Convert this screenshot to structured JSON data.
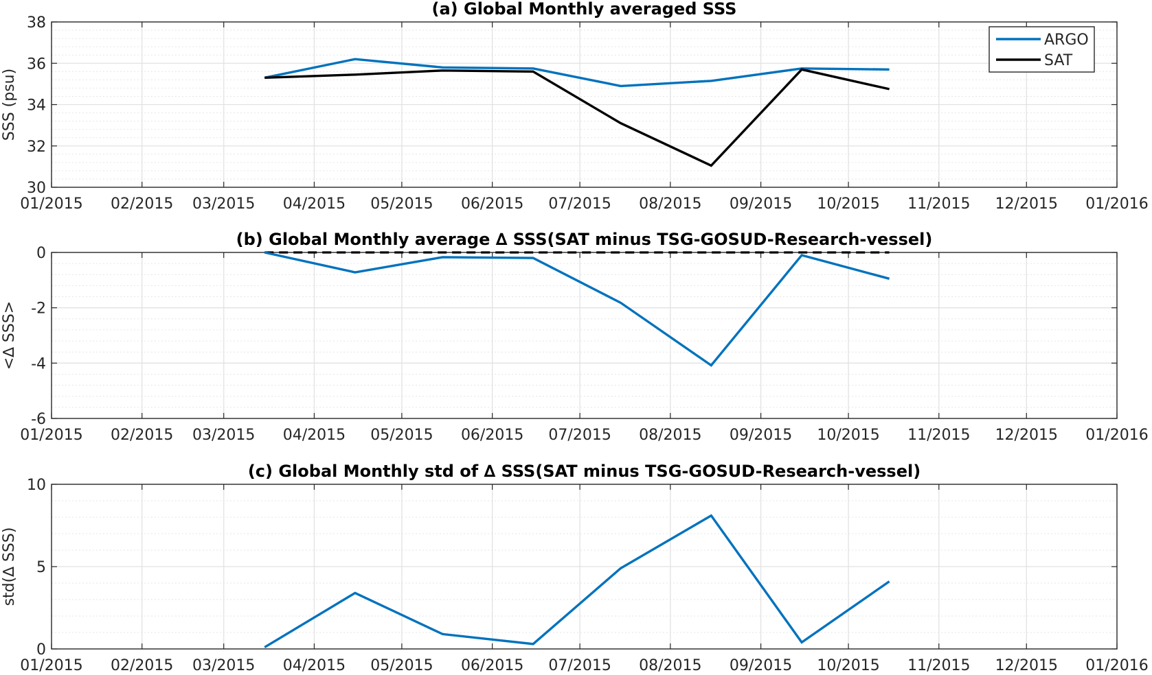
{
  "chart_data": [
    {
      "type": "line",
      "title": "(a) Global Monthly averaged SSS",
      "xlabel": "",
      "ylabel": "SSS (psu)",
      "xlim": [
        "2015-01-01",
        "2016-01-01"
      ],
      "ylim": [
        30,
        38
      ],
      "yticks": [
        30,
        32,
        34,
        36,
        38
      ],
      "xtick_labels": [
        "01/2015",
        "02/2015",
        "03/2015",
        "04/2015",
        "05/2015",
        "06/2015",
        "07/2015",
        "08/2015",
        "09/2015",
        "10/2015",
        "11/2015",
        "12/2015",
        "01/2016"
      ],
      "grid": true,
      "legend": "top-right",
      "x": [
        "2015-03-15",
        "2015-04-15",
        "2015-05-15",
        "2015-06-15",
        "2015-07-15",
        "2015-08-15",
        "2015-09-15",
        "2015-10-15"
      ],
      "series": [
        {
          "name": "ARGO",
          "color": "#0072BD",
          "values": [
            35.3,
            36.2,
            35.8,
            35.75,
            34.9,
            35.15,
            35.75,
            35.7
          ]
        },
        {
          "name": "SAT",
          "color": "#000000",
          "values": [
            35.3,
            35.45,
            35.65,
            35.6,
            33.1,
            31.05,
            35.7,
            34.75
          ]
        }
      ]
    },
    {
      "type": "line",
      "title": "(b) Global Monthly average ∆ SSS(SAT minus TSG-GOSUD-Research-vessel)",
      "xlabel": "",
      "ylabel": "<∆ SSS>",
      "xlim": [
        "2015-01-01",
        "2016-01-01"
      ],
      "ylim": [
        -6,
        0
      ],
      "yticks": [
        -6,
        -4,
        -2,
        0
      ],
      "xtick_labels": [
        "01/2015",
        "02/2015",
        "03/2015",
        "04/2015",
        "05/2015",
        "06/2015",
        "07/2015",
        "08/2015",
        "09/2015",
        "10/2015",
        "11/2015",
        "12/2015",
        "01/2016"
      ],
      "grid": true,
      "x": [
        "2015-03-15",
        "2015-04-15",
        "2015-05-15",
        "2015-06-15",
        "2015-07-15",
        "2015-08-15",
        "2015-09-15",
        "2015-10-15"
      ],
      "series": [
        {
          "color": "#0072BD",
          "values": [
            0.0,
            -0.72,
            -0.17,
            -0.2,
            -1.82,
            -4.08,
            -0.1,
            -0.95
          ]
        }
      ],
      "reference_line": {
        "y": 0,
        "x_range": [
          "2015-03-15",
          "2015-10-15"
        ],
        "style": "dashed",
        "color": "#000000"
      }
    },
    {
      "type": "line",
      "title": "(c) Global Monthly std of ∆ SSS(SAT minus TSG-GOSUD-Research-vessel)",
      "xlabel": "",
      "ylabel": "std(∆ SSS)",
      "xlim": [
        "2015-01-01",
        "2016-01-01"
      ],
      "ylim": [
        0,
        10
      ],
      "yticks": [
        0,
        5,
        10
      ],
      "xtick_labels": [
        "01/2015",
        "02/2015",
        "03/2015",
        "04/2015",
        "05/2015",
        "06/2015",
        "07/2015",
        "08/2015",
        "09/2015",
        "10/2015",
        "11/2015",
        "12/2015",
        "01/2016"
      ],
      "grid": true,
      "x": [
        "2015-03-15",
        "2015-04-15",
        "2015-05-15",
        "2015-06-15",
        "2015-07-15",
        "2015-08-15",
        "2015-09-15",
        "2015-10-15"
      ],
      "series": [
        {
          "color": "#0072BD",
          "values": [
            0.1,
            3.4,
            0.9,
            0.3,
            4.9,
            8.1,
            0.4,
            4.1
          ]
        }
      ]
    }
  ]
}
